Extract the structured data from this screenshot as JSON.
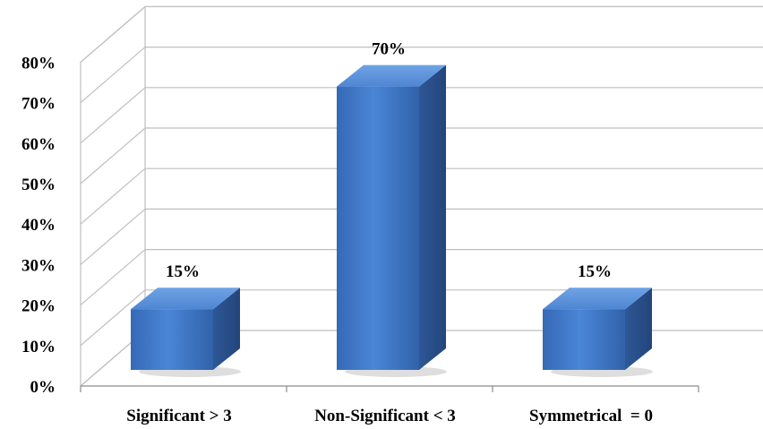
{
  "chart_data": {
    "type": "bar",
    "categories": [
      "Significant > 3",
      "Non-Significant < 3",
      "Symmetrical  = 0"
    ],
    "values": [
      15,
      70,
      15
    ],
    "data_labels": [
      "15%",
      "70%",
      "15%"
    ],
    "y_ticks": [
      "0%",
      "10%",
      "20%",
      "30%",
      "40%",
      "50%",
      "60%",
      "70%",
      "80%"
    ],
    "ylim": [
      0,
      80
    ],
    "grid": true,
    "style": "3d-column",
    "bar_colors": {
      "front": "#3F77C7",
      "top": "#5E93DC",
      "side": "#2A5392"
    }
  }
}
